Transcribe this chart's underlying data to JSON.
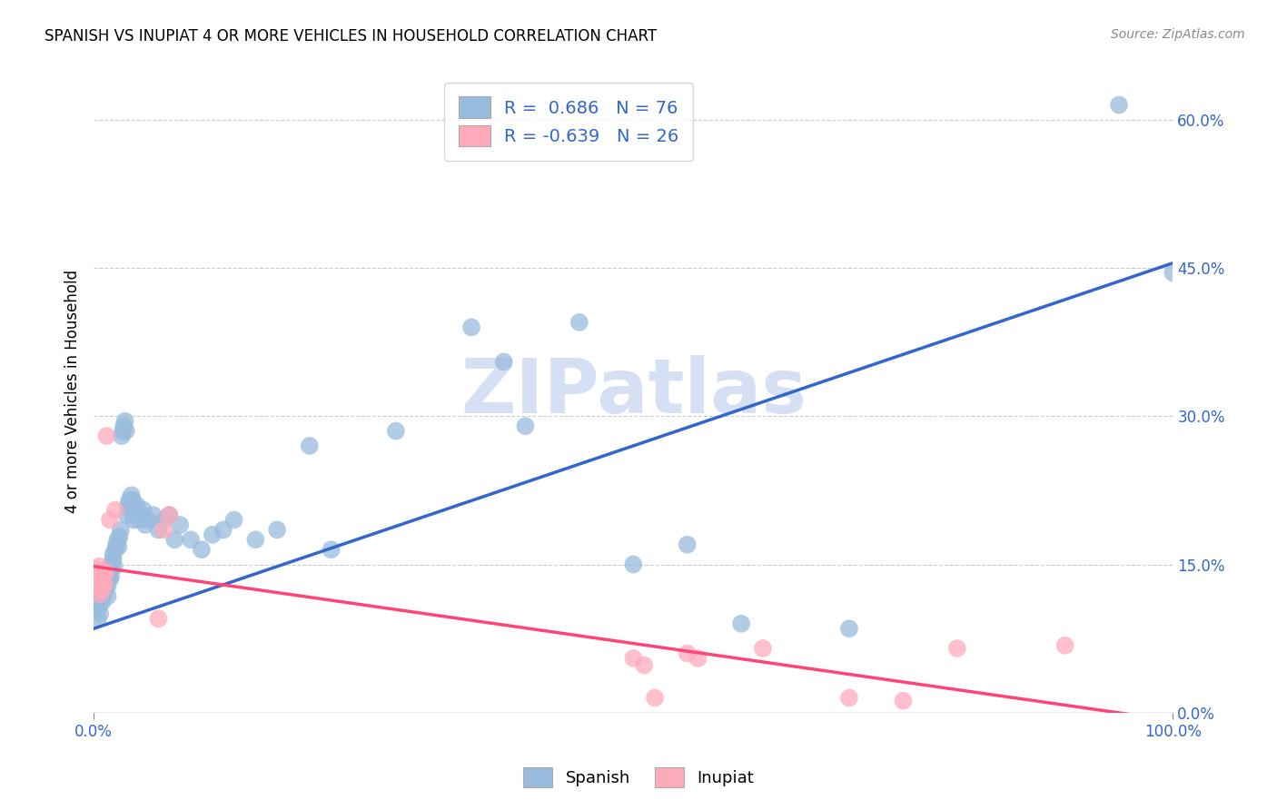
{
  "title": "SPANISH VS INUPIAT 4 OR MORE VEHICLES IN HOUSEHOLD CORRELATION CHART",
  "source": "Source: ZipAtlas.com",
  "ylabel": "4 or more Vehicles in Household",
  "legend_bottom": [
    "Spanish",
    "Inupiat"
  ],
  "xlim": [
    0.0,
    1.0
  ],
  "ylim": [
    0.0,
    0.65
  ],
  "xtick_positions": [
    0.0,
    1.0
  ],
  "xtick_labels": [
    "0.0%",
    "100.0%"
  ],
  "ytick_labels_right": [
    "0.0%",
    "15.0%",
    "30.0%",
    "45.0%",
    "60.0%"
  ],
  "yticks_right": [
    0.0,
    0.15,
    0.3,
    0.45,
    0.6
  ],
  "R_blue": 0.686,
  "N_blue": 76,
  "R_pink": -0.639,
  "N_pink": 26,
  "blue_color": "#99BBDD",
  "pink_color": "#FFAABB",
  "blue_line_color": "#3366CC",
  "pink_line_color": "#FF4477",
  "blue_line_x0": 0.0,
  "blue_line_y0": 0.085,
  "blue_line_x1": 1.0,
  "blue_line_y1": 0.455,
  "pink_line_x0": 0.0,
  "pink_line_y0": 0.148,
  "pink_line_x1": 1.0,
  "pink_line_y1": -0.008,
  "watermark": "ZIPatlas",
  "watermark_color": "#BBCCEE",
  "background_color": "#FFFFFF",
  "grid_color": "#CCCCCC",
  "blue_x": [
    0.002,
    0.003,
    0.004,
    0.005,
    0.005,
    0.006,
    0.007,
    0.008,
    0.008,
    0.009,
    0.01,
    0.01,
    0.011,
    0.012,
    0.013,
    0.013,
    0.014,
    0.015,
    0.015,
    0.016,
    0.016,
    0.017,
    0.018,
    0.018,
    0.019,
    0.02,
    0.021,
    0.022,
    0.023,
    0.024,
    0.025,
    0.026,
    0.027,
    0.028,
    0.029,
    0.03,
    0.031,
    0.032,
    0.033,
    0.034,
    0.035,
    0.036,
    0.037,
    0.038,
    0.04,
    0.042,
    0.044,
    0.046,
    0.048,
    0.05,
    0.055,
    0.06,
    0.065,
    0.07,
    0.075,
    0.08,
    0.09,
    0.1,
    0.11,
    0.12,
    0.13,
    0.15,
    0.17,
    0.2,
    0.22,
    0.28,
    0.35,
    0.38,
    0.4,
    0.45,
    0.5,
    0.55,
    0.6,
    0.7,
    0.95,
    1.0
  ],
  "blue_y": [
    0.105,
    0.11,
    0.095,
    0.115,
    0.108,
    0.1,
    0.118,
    0.112,
    0.125,
    0.12,
    0.13,
    0.122,
    0.128,
    0.135,
    0.128,
    0.118,
    0.14,
    0.135,
    0.145,
    0.148,
    0.138,
    0.152,
    0.155,
    0.16,
    0.148,
    0.165,
    0.17,
    0.175,
    0.168,
    0.178,
    0.185,
    0.28,
    0.285,
    0.29,
    0.295,
    0.285,
    0.2,
    0.21,
    0.215,
    0.205,
    0.22,
    0.215,
    0.195,
    0.205,
    0.21,
    0.195,
    0.2,
    0.205,
    0.19,
    0.195,
    0.2,
    0.185,
    0.195,
    0.2,
    0.175,
    0.19,
    0.175,
    0.165,
    0.18,
    0.185,
    0.195,
    0.175,
    0.185,
    0.27,
    0.165,
    0.285,
    0.39,
    0.355,
    0.29,
    0.395,
    0.15,
    0.17,
    0.09,
    0.085,
    0.615,
    0.445
  ],
  "pink_x": [
    0.002,
    0.003,
    0.004,
    0.005,
    0.006,
    0.007,
    0.008,
    0.009,
    0.01,
    0.011,
    0.012,
    0.015,
    0.02,
    0.06,
    0.065,
    0.07,
    0.5,
    0.51,
    0.52,
    0.55,
    0.56,
    0.62,
    0.7,
    0.75,
    0.8,
    0.9
  ],
  "pink_y": [
    0.145,
    0.13,
    0.14,
    0.148,
    0.12,
    0.135,
    0.125,
    0.138,
    0.13,
    0.142,
    0.28,
    0.195,
    0.205,
    0.095,
    0.185,
    0.2,
    0.055,
    0.048,
    0.015,
    0.06,
    0.055,
    0.065,
    0.015,
    0.012,
    0.065,
    0.068
  ]
}
